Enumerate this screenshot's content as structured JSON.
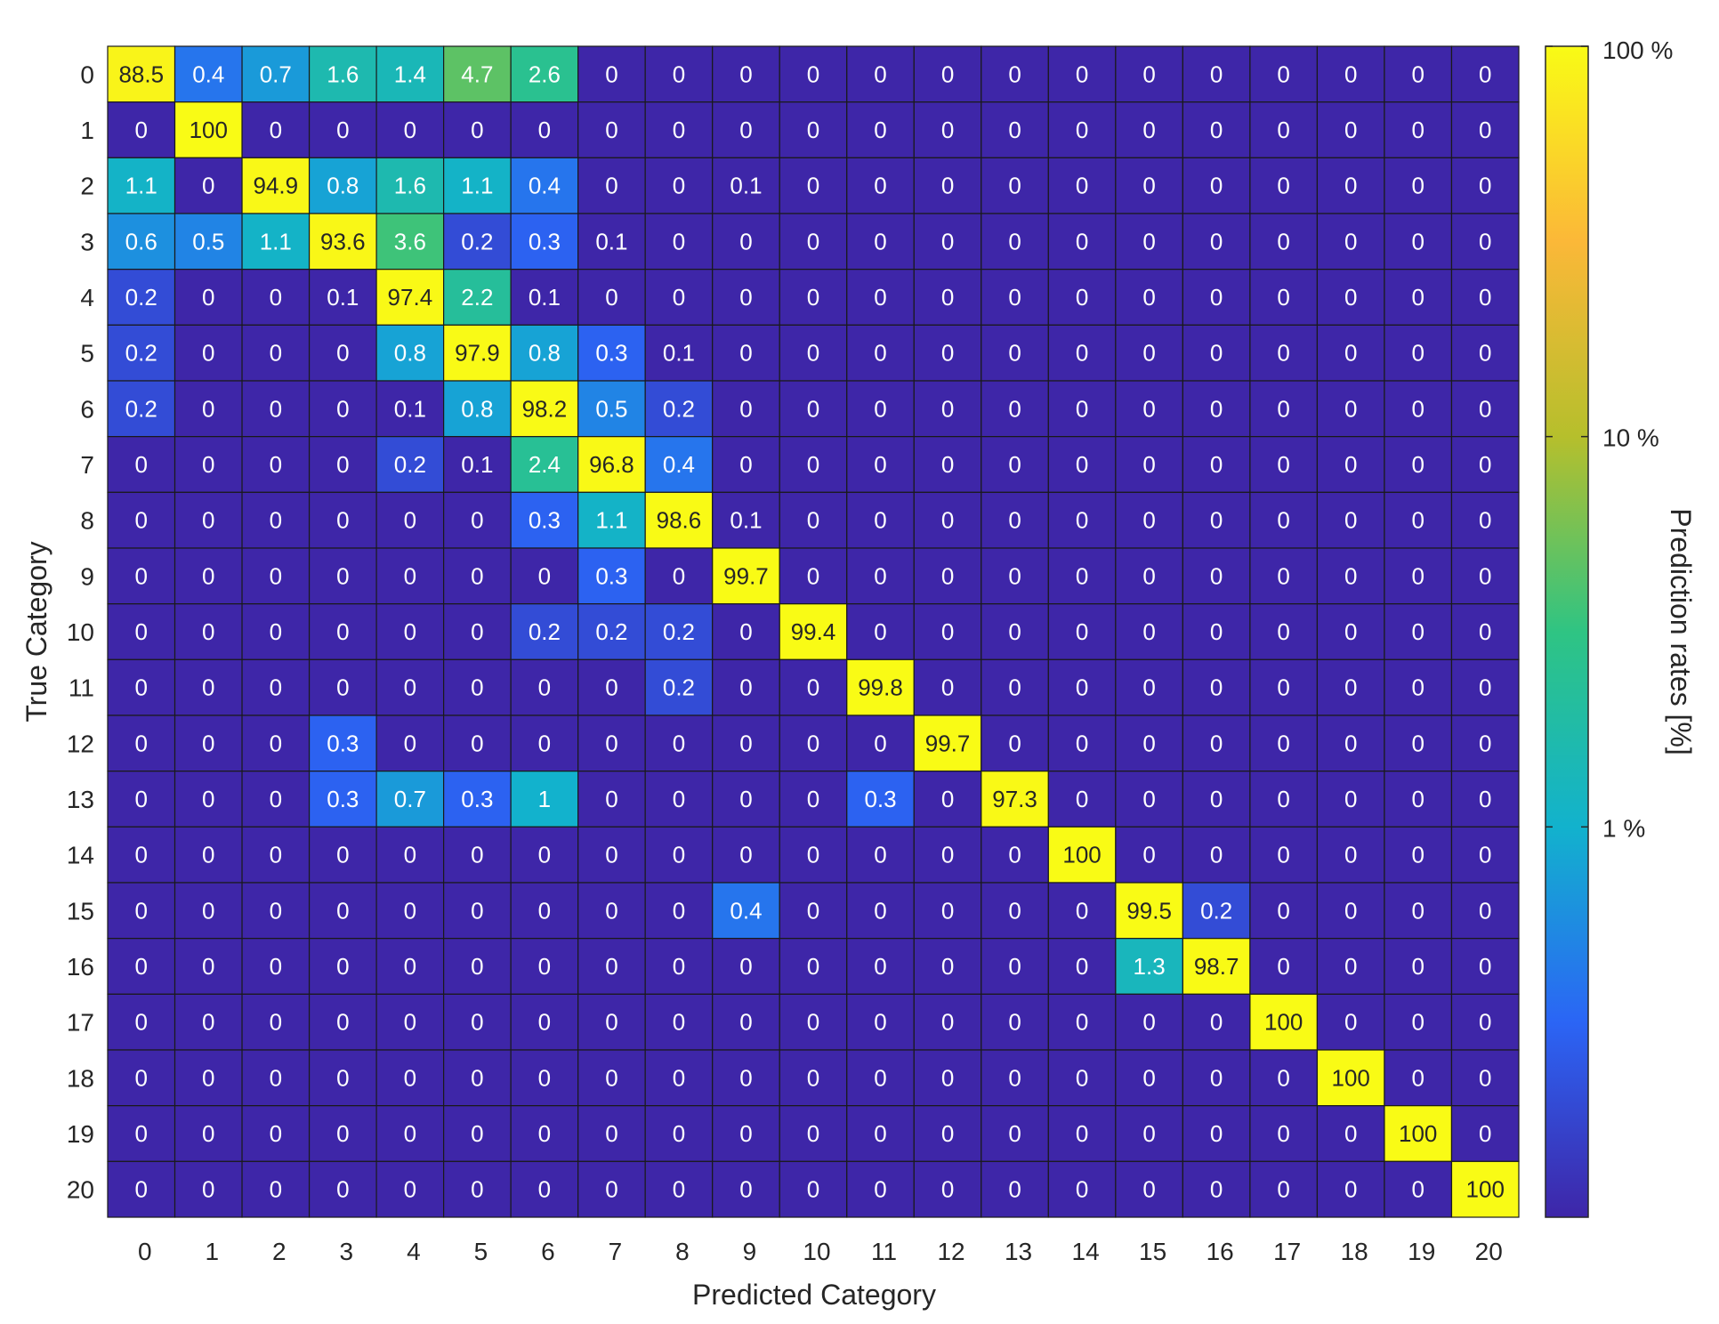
{
  "chart_data": {
    "type": "heatmap",
    "title": "",
    "xlabel": "Predicted Category",
    "ylabel": "True Category",
    "x_categories": [
      "0",
      "1",
      "2",
      "3",
      "4",
      "5",
      "6",
      "7",
      "8",
      "9",
      "10",
      "11",
      "12",
      "13",
      "14",
      "15",
      "16",
      "17",
      "18",
      "19",
      "20"
    ],
    "y_categories": [
      "0",
      "1",
      "2",
      "3",
      "4",
      "5",
      "6",
      "7",
      "8",
      "9",
      "10",
      "11",
      "12",
      "13",
      "14",
      "15",
      "16",
      "17",
      "18",
      "19",
      "20"
    ],
    "values": [
      [
        88.5,
        0.4,
        0.7,
        1.6,
        1.4,
        4.7,
        2.6,
        0,
        0,
        0,
        0,
        0,
        0,
        0,
        0,
        0,
        0,
        0,
        0,
        0,
        0
      ],
      [
        0,
        100,
        0,
        0,
        0,
        0,
        0,
        0,
        0,
        0,
        0,
        0,
        0,
        0,
        0,
        0,
        0,
        0,
        0,
        0,
        0
      ],
      [
        1.1,
        0,
        94.9,
        0.8,
        1.6,
        1.1,
        0.4,
        0,
        0,
        0.1,
        0,
        0,
        0,
        0,
        0,
        0,
        0,
        0,
        0,
        0,
        0
      ],
      [
        0.6,
        0.5,
        1.1,
        93.6,
        3.6,
        0.2,
        0.3,
        0.1,
        0,
        0,
        0,
        0,
        0,
        0,
        0,
        0,
        0,
        0,
        0,
        0,
        0
      ],
      [
        0.2,
        0,
        0,
        0.1,
        97.4,
        2.2,
        0.1,
        0,
        0,
        0,
        0,
        0,
        0,
        0,
        0,
        0,
        0,
        0,
        0,
        0,
        0
      ],
      [
        0.2,
        0,
        0,
        0,
        0.8,
        97.9,
        0.8,
        0.3,
        0.1,
        0,
        0,
        0,
        0,
        0,
        0,
        0,
        0,
        0,
        0,
        0,
        0
      ],
      [
        0.2,
        0,
        0,
        0,
        0.1,
        0.8,
        98.2,
        0.5,
        0.2,
        0,
        0,
        0,
        0,
        0,
        0,
        0,
        0,
        0,
        0,
        0,
        0
      ],
      [
        0,
        0,
        0,
        0,
        0.2,
        0.1,
        2.4,
        96.8,
        0.4,
        0,
        0,
        0,
        0,
        0,
        0,
        0,
        0,
        0,
        0,
        0,
        0
      ],
      [
        0,
        0,
        0,
        0,
        0,
        0,
        0.3,
        1.1,
        98.6,
        0.1,
        0,
        0,
        0,
        0,
        0,
        0,
        0,
        0,
        0,
        0,
        0
      ],
      [
        0,
        0,
        0,
        0,
        0,
        0,
        0,
        0.3,
        0,
        99.7,
        0,
        0,
        0,
        0,
        0,
        0,
        0,
        0,
        0,
        0,
        0
      ],
      [
        0,
        0,
        0,
        0,
        0,
        0,
        0.2,
        0.2,
        0.2,
        0,
        99.4,
        0,
        0,
        0,
        0,
        0,
        0,
        0,
        0,
        0,
        0
      ],
      [
        0,
        0,
        0,
        0,
        0,
        0,
        0,
        0,
        0.2,
        0,
        0,
        99.8,
        0,
        0,
        0,
        0,
        0,
        0,
        0,
        0,
        0
      ],
      [
        0,
        0,
        0,
        0.3,
        0,
        0,
        0,
        0,
        0,
        0,
        0,
        0,
        99.7,
        0,
        0,
        0,
        0,
        0,
        0,
        0,
        0
      ],
      [
        0,
        0,
        0,
        0.3,
        0.7,
        0.3,
        1,
        0,
        0,
        0,
        0,
        0.3,
        0,
        97.3,
        0,
        0,
        0,
        0,
        0,
        0,
        0
      ],
      [
        0,
        0,
        0,
        0,
        0,
        0,
        0,
        0,
        0,
        0,
        0,
        0,
        0,
        0,
        100,
        0,
        0,
        0,
        0,
        0,
        0
      ],
      [
        0,
        0,
        0,
        0,
        0,
        0,
        0,
        0,
        0,
        0.4,
        0,
        0,
        0,
        0,
        0,
        99.5,
        0.2,
        0,
        0,
        0,
        0
      ],
      [
        0,
        0,
        0,
        0,
        0,
        0,
        0,
        0,
        0,
        0,
        0,
        0,
        0,
        0,
        0,
        1.3,
        98.7,
        0,
        0,
        0,
        0
      ],
      [
        0,
        0,
        0,
        0,
        0,
        0,
        0,
        0,
        0,
        0,
        0,
        0,
        0,
        0,
        0,
        0,
        0,
        100,
        0,
        0,
        0
      ],
      [
        0,
        0,
        0,
        0,
        0,
        0,
        0,
        0,
        0,
        0,
        0,
        0,
        0,
        0,
        0,
        0,
        0,
        0,
        100,
        0,
        0
      ],
      [
        0,
        0,
        0,
        0,
        0,
        0,
        0,
        0,
        0,
        0,
        0,
        0,
        0,
        0,
        0,
        0,
        0,
        0,
        0,
        100,
        0
      ],
      [
        0,
        0,
        0,
        0,
        0,
        0,
        0,
        0,
        0,
        0,
        0,
        0,
        0,
        0,
        0,
        0,
        0,
        0,
        0,
        0,
        100
      ]
    ],
    "colorbar": {
      "label": "Prediction rates [%]",
      "scale": "log",
      "ticks": [
        {
          "value": 100,
          "label": "100 %"
        },
        {
          "value": 10,
          "label": "10 %"
        },
        {
          "value": 1,
          "label": "1 %"
        }
      ],
      "range": [
        0.1,
        100
      ],
      "colormap": [
        "#3e26a8",
        "#2b65f5",
        "#12b2cd",
        "#2fc483",
        "#b6bf2c",
        "#fbb838",
        "#f9fb15"
      ]
    },
    "zero_color": "#3e26a8"
  }
}
